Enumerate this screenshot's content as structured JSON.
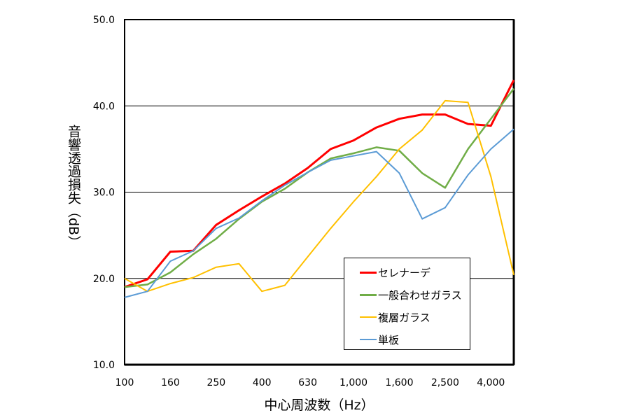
{
  "chart_data": {
    "type": "line",
    "title": "",
    "xlabel": "中心周波数（Hz）",
    "ylabel": "音響透過損失（dB）",
    "ylim": [
      10,
      50
    ],
    "yticks": [
      "10.0",
      "20.0",
      "30.0",
      "40.0",
      "50.0"
    ],
    "grid": true,
    "legend_position": "bottom-right",
    "x": [
      100,
      125,
      160,
      200,
      250,
      315,
      400,
      500,
      630,
      800,
      1000,
      1250,
      1600,
      2000,
      2500,
      3150,
      4000,
      5000
    ],
    "xtick_labels": [
      {
        "index": 0,
        "label": "100"
      },
      {
        "index": 2,
        "label": "160"
      },
      {
        "index": 4,
        "label": "250"
      },
      {
        "index": 6,
        "label": "400"
      },
      {
        "index": 8,
        "label": "630"
      },
      {
        "index": 10,
        "label": "1,000"
      },
      {
        "index": 12,
        "label": "1,600"
      },
      {
        "index": 14,
        "label": "2,500"
      },
      {
        "index": 16,
        "label": "4,000"
      }
    ],
    "series": [
      {
        "name": "セレナーデ",
        "color": "#ff0000",
        "width": 3,
        "values": [
          19.0,
          19.9,
          23.1,
          23.2,
          26.2,
          27.9,
          29.5,
          31.0,
          32.8,
          35.0,
          36.0,
          37.5,
          38.5,
          39.0,
          39.0,
          37.9,
          37.7,
          43.0
        ]
      },
      {
        "name": "一般合わせガラス",
        "color": "#70ad47",
        "width": 2.5,
        "values": [
          19.0,
          19.3,
          20.7,
          22.8,
          24.6,
          26.9,
          28.9,
          30.4,
          32.3,
          33.9,
          34.5,
          35.2,
          34.8,
          32.2,
          30.5,
          35.0,
          38.5,
          42.0
        ]
      },
      {
        "name": "複層ガラス",
        "color": "#ffc000",
        "width": 2,
        "values": [
          20.0,
          18.5,
          19.4,
          20.1,
          21.3,
          21.7,
          18.5,
          19.2,
          22.5,
          25.8,
          28.9,
          31.8,
          35.0,
          37.2,
          40.6,
          40.4,
          31.8,
          20.4
        ]
      },
      {
        "name": "単板",
        "color": "#5b9bd5",
        "width": 2,
        "values": [
          17.8,
          18.5,
          22.0,
          23.2,
          25.8,
          27.0,
          29.0,
          30.8,
          32.3,
          33.7,
          34.2,
          34.7,
          32.2,
          26.9,
          28.2,
          32.0,
          35.0,
          37.3
        ]
      }
    ]
  }
}
